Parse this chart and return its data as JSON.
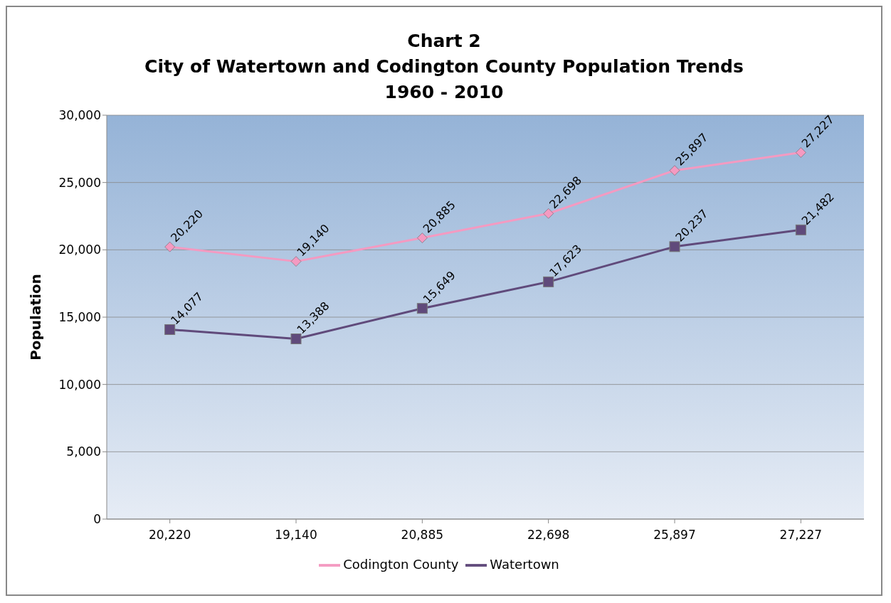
{
  "chart_data": {
    "type": "line",
    "title": "Chart 2\nCity of Watertown and Codington County Population Trends\n1960 - 2010",
    "ylabel": "Population",
    "categories": [
      "20,220",
      "19,140",
      "20,885",
      "22,698",
      "25,897",
      "27,227"
    ],
    "series": [
      {
        "name": "Codington County",
        "color": "#f49ac1",
        "marker": "diamond",
        "values": [
          20220,
          19140,
          20885,
          22698,
          25897,
          27227
        ],
        "value_labels": [
          "20,220",
          "19,140",
          "20,885",
          "22,698",
          "25,897",
          "27,227"
        ]
      },
      {
        "name": "Watertown",
        "color": "#604a7b",
        "marker": "square",
        "values": [
          14077,
          13388,
          15649,
          17623,
          20237,
          21482
        ],
        "value_labels": [
          "14,077",
          "13,388",
          "15,649",
          "17,623",
          "20,237",
          "21,482"
        ]
      }
    ],
    "ylim": [
      0,
      30000
    ],
    "yticks": [
      {
        "value": 0,
        "label": "0"
      },
      {
        "value": 5000,
        "label": "5,000"
      },
      {
        "value": 10000,
        "label": "10,000"
      },
      {
        "value": 15000,
        "label": "15,000"
      },
      {
        "value": 20000,
        "label": "20,000"
      },
      {
        "value": 25000,
        "label": "25,000"
      },
      {
        "value": 30000,
        "label": "30,000"
      }
    ],
    "grid": "y",
    "legend": "bottom"
  }
}
